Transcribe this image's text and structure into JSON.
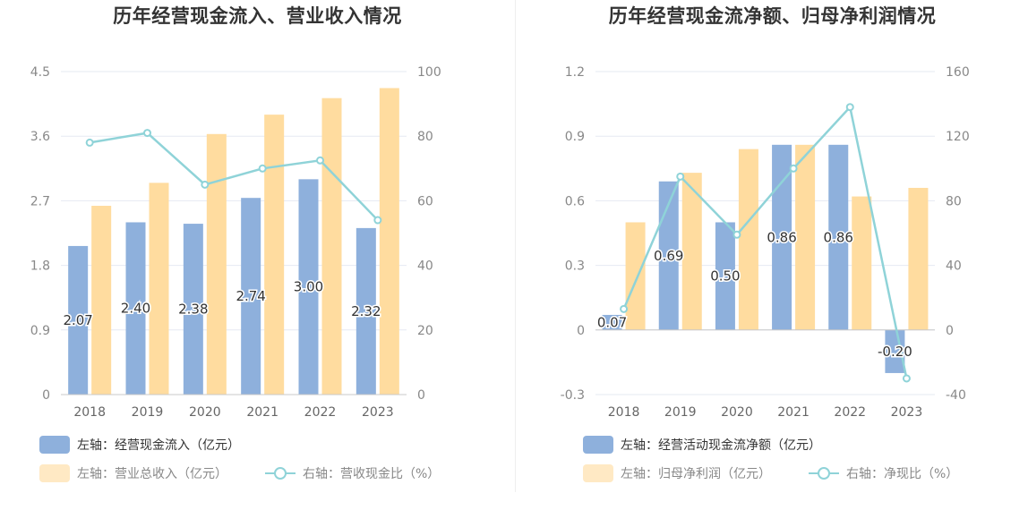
{
  "colors": {
    "bar_primary": "#8eb0dc",
    "bar_secondary": "#ffdc9f",
    "line": "#8fd3d8",
    "grid": "#e6e9f2",
    "axis": "#c8c8c8"
  },
  "chart_data": [
    {
      "type": "bar",
      "title": "历年经营现金流入、营业收入情况",
      "categories": [
        "2018",
        "2019",
        "2020",
        "2021",
        "2022",
        "2023"
      ],
      "y_left": {
        "ticks": [
          "0",
          "0.9",
          "1.8",
          "2.7",
          "3.6",
          "4.5"
        ],
        "range": [
          0,
          4.5
        ]
      },
      "y_right": {
        "ticks": [
          "0",
          "20",
          "40",
          "60",
          "80",
          "100"
        ],
        "range": [
          0,
          100
        ]
      },
      "series": [
        {
          "name": "左轴：经营现金流入（亿元）",
          "kind": "bar",
          "axis": "left",
          "values": [
            2.07,
            2.4,
            2.38,
            2.74,
            3.0,
            2.32
          ],
          "labels": [
            "2.07",
            "2.40",
            "2.38",
            "2.74",
            "3.00",
            "2.32"
          ]
        },
        {
          "name": "左轴：营业总收入（亿元）",
          "kind": "bar",
          "axis": "left",
          "values": [
            2.63,
            2.95,
            3.63,
            3.9,
            4.13,
            4.27
          ]
        },
        {
          "name": "右轴：营收现金比（%）",
          "kind": "line",
          "axis": "right",
          "values": [
            78.0,
            81.0,
            65.0,
            70.0,
            72.5,
            54.0
          ]
        }
      ],
      "legend_position": "bottom-left"
    },
    {
      "type": "bar",
      "title": "历年经营现金流净额、归母净利润情况",
      "categories": [
        "2018",
        "2019",
        "2020",
        "2021",
        "2022",
        "2023"
      ],
      "y_left": {
        "ticks": [
          "-0.3",
          "0",
          "0.3",
          "0.6",
          "0.9",
          "1.2"
        ],
        "range": [
          -0.3,
          1.2
        ]
      },
      "y_right": {
        "ticks": [
          "-40",
          "0",
          "40",
          "80",
          "120",
          "160"
        ],
        "range": [
          -40,
          160
        ]
      },
      "series": [
        {
          "name": "左轴：经营活动现金流净额（亿元）",
          "kind": "bar",
          "axis": "left",
          "values": [
            0.07,
            0.69,
            0.5,
            0.86,
            0.86,
            -0.2
          ],
          "labels": [
            "0.07",
            "0.69",
            "0.50",
            "0.86",
            "0.86",
            "-0.20"
          ]
        },
        {
          "name": "左轴：归母净利润（亿元）",
          "kind": "bar",
          "axis": "left",
          "values": [
            0.5,
            0.73,
            0.84,
            0.86,
            0.62,
            0.66
          ]
        },
        {
          "name": "右轴：净现比（%）",
          "kind": "line",
          "axis": "right",
          "values": [
            13.0,
            95.0,
            59.0,
            100.0,
            138.0,
            -30.0
          ]
        }
      ],
      "legend_position": "bottom-left"
    }
  ]
}
